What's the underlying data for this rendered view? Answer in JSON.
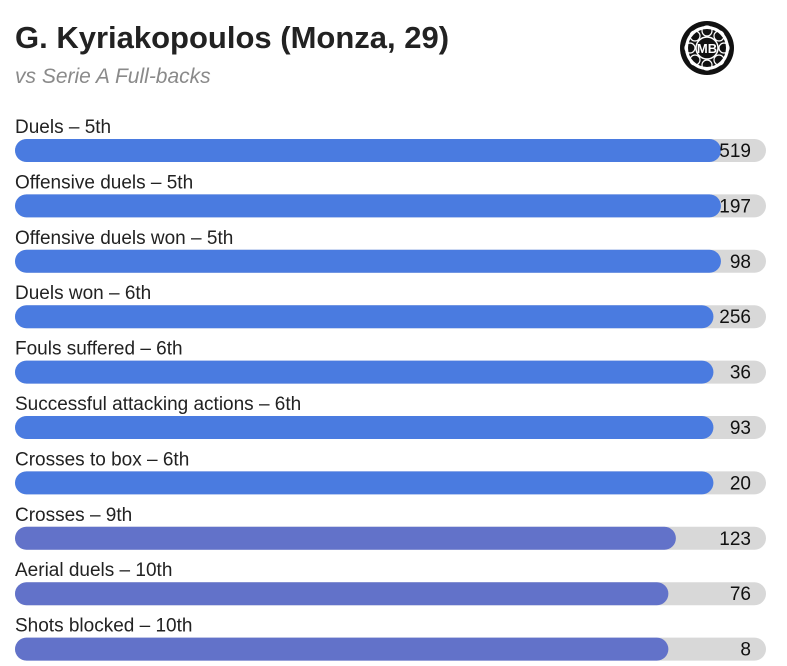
{
  "header": {
    "title": "G. Kyriakopoulos (Monza, 29)",
    "subtitle": "vs Serie A Full-backs",
    "logo_text": "MB"
  },
  "chart_data": {
    "type": "bar",
    "orientation": "horizontal",
    "categories": [
      "Duels – 5th",
      "Offensive duels – 5th",
      "Offensive duels won – 5th",
      "Duels won – 6th",
      "Fouls suffered – 6th",
      "Successful attacking actions – 6th",
      "Crosses to box – 6th",
      "Crosses – 9th",
      "Aerial duels – 10th",
      "Shots blocked – 10th"
    ],
    "values": [
      519,
      197,
      98,
      256,
      36,
      93,
      20,
      123,
      76,
      8
    ],
    "fill_fraction": [
      0.94,
      0.94,
      0.94,
      0.93,
      0.93,
      0.93,
      0.93,
      0.88,
      0.87,
      0.87
    ],
    "colors": {
      "bar_primary": "#4a7be0",
      "bar_secondary": "#6272c9",
      "track": "#d8d8d8"
    },
    "legend": "none",
    "grid": false
  }
}
